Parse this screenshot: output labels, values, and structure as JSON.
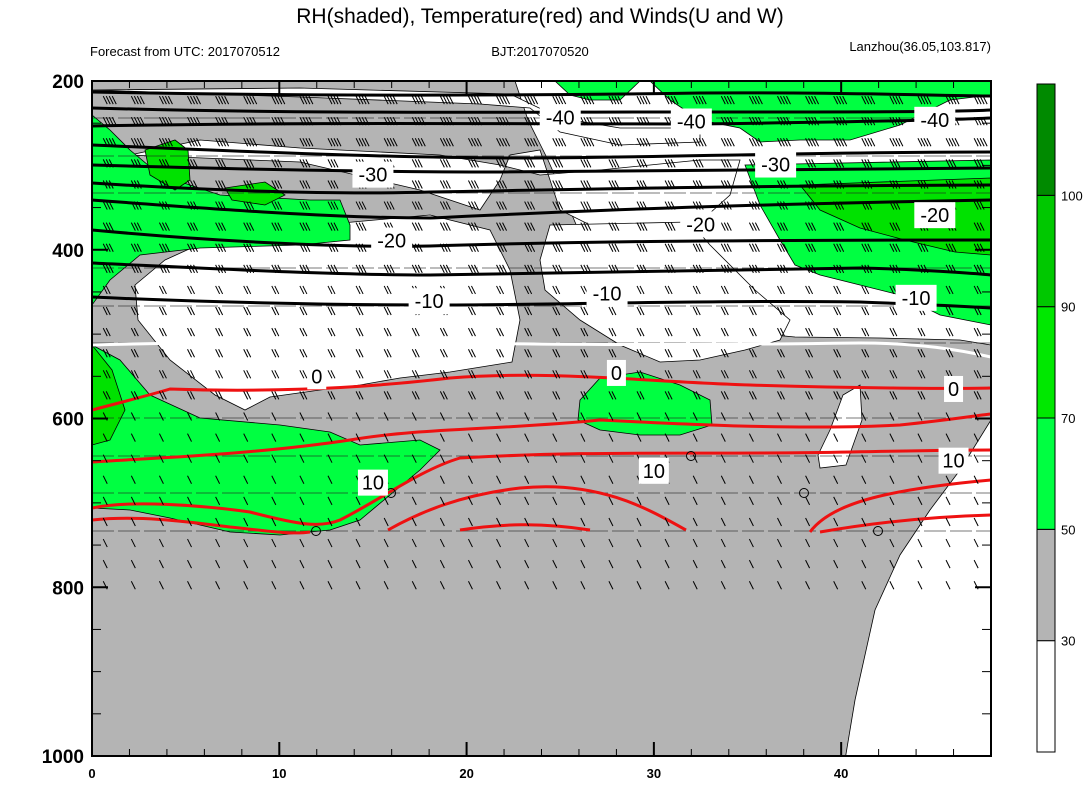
{
  "chart_data": {
    "type": "contour-cross-section",
    "title": "RH(shaded), Temperature(red) and Winds(U and W)",
    "subtitle_left": "Forecast from UTC: 2017070512",
    "subtitle_center": "BJT:2017070520",
    "subtitle_right": "Lanzhou(36.05,103.817)",
    "x_axis": {
      "range": [
        0,
        48
      ],
      "ticks": [
        0,
        10,
        20,
        30,
        40
      ],
      "tick_labels": [
        "0",
        "10",
        "20",
        "30",
        "40"
      ]
    },
    "y_axis": {
      "range": [
        200,
        1000
      ],
      "inverted": true,
      "ticks": [
        200,
        400,
        600,
        800,
        1000
      ],
      "tick_labels": [
        "200",
        "400",
        "600",
        "800",
        "1000"
      ]
    },
    "colorbar": {
      "labels": [
        "30",
        "50",
        "70",
        "90",
        "100"
      ],
      "levels": [
        30,
        50,
        70,
        90,
        100
      ],
      "colors": [
        "#ffffff",
        "#b4b4b4",
        "#00ff41",
        "#00e800",
        "#00c800",
        "#008a00"
      ]
    },
    "colors": {
      "temp_warm": "#ee1111",
      "temp_zero": "#ffffff",
      "temp_cold": "#000000",
      "shade_gray": "#b4b4b4",
      "shade_green": "#00ff41",
      "shade_green_dark": "#00e200"
    },
    "temperature_contour_labels": [
      {
        "value": "-40",
        "x": 25,
        "y": 243
      },
      {
        "value": "-40",
        "x": 32,
        "y": 248
      },
      {
        "value": "-40",
        "x": 45,
        "y": 246
      },
      {
        "value": "-30",
        "x": 15,
        "y": 311
      },
      {
        "value": "-30",
        "x": 36.5,
        "y": 299
      },
      {
        "value": "-20",
        "x": 16,
        "y": 389
      },
      {
        "value": "-20",
        "x": 32.5,
        "y": 370
      },
      {
        "value": "-20",
        "x": 45,
        "y": 359
      },
      {
        "value": "-10",
        "x": 18,
        "y": 461
      },
      {
        "value": "-10",
        "x": 27.5,
        "y": 452
      },
      {
        "value": "-10",
        "x": 44,
        "y": 457
      },
      {
        "value": "0",
        "x": 12,
        "y": 550
      },
      {
        "value": "0",
        "x": 28,
        "y": 546
      },
      {
        "value": "0",
        "x": 46,
        "y": 565
      },
      {
        "value": "10",
        "x": 15,
        "y": 676
      },
      {
        "value": "10",
        "x": 30,
        "y": 662
      },
      {
        "value": "10",
        "x": 46,
        "y": 650
      }
    ]
  }
}
